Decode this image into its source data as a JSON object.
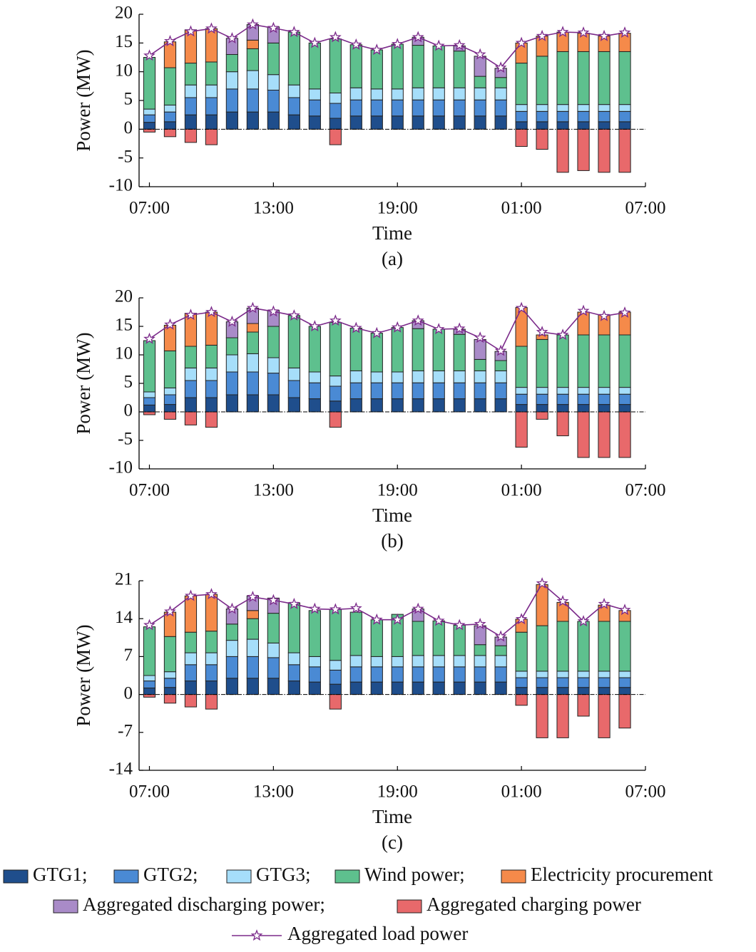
{
  "chart_data": [
    {
      "type": "bar",
      "stacked": true,
      "caption": "(a)",
      "xlabel": "Time",
      "ylabel": "Power (MW)",
      "x": [
        0,
        1,
        2,
        3,
        4,
        5,
        6,
        7,
        8,
        9,
        10,
        11,
        12,
        13,
        14,
        15,
        16,
        17,
        18,
        19,
        20,
        21,
        22,
        23
      ],
      "xlim": [
        -0.5,
        24
      ],
      "xticks": [
        {
          "value": 0,
          "label": "07:00"
        },
        {
          "value": 6,
          "label": "13:00"
        },
        {
          "value": 12,
          "label": "19:00"
        },
        {
          "value": 18,
          "label": "01:00"
        },
        {
          "value": 24,
          "label": "07:00"
        }
      ],
      "ylim": [
        -10,
        20
      ],
      "yticks": [
        -10,
        -5,
        0,
        5,
        10,
        15,
        20
      ],
      "series": [
        {
          "name": "GTG1;",
          "color": "#1f4e8c",
          "values": [
            1.2,
            1.3,
            2.5,
            2.5,
            3.0,
            3.0,
            3.0,
            2.5,
            2.3,
            1.9,
            2.3,
            2.3,
            2.3,
            2.3,
            2.3,
            2.3,
            2.3,
            2.3,
            1.3,
            1.3,
            1.3,
            1.3,
            1.3,
            1.3
          ]
        },
        {
          "name": "GTG2;",
          "color": "#4a8ad4",
          "values": [
            1.3,
            1.7,
            3.0,
            3.0,
            4.0,
            4.0,
            3.8,
            3.0,
            2.8,
            2.6,
            2.8,
            2.8,
            2.8,
            2.8,
            2.8,
            2.8,
            2.8,
            2.8,
            1.8,
            1.8,
            1.8,
            1.8,
            1.8,
            1.8
          ]
        },
        {
          "name": "GTG3;",
          "color": "#a6defa",
          "values": [
            1.0,
            1.2,
            2.2,
            2.2,
            3.0,
            3.2,
            2.7,
            2.2,
            1.9,
            1.8,
            2.1,
            1.9,
            1.9,
            2.1,
            2.1,
            2.1,
            2.1,
            2.1,
            1.2,
            1.2,
            1.2,
            1.2,
            1.2,
            1.2
          ]
        },
        {
          "name": "Wind power;",
          "color": "#5ec08e",
          "values": [
            9.0,
            6.5,
            3.8,
            4.0,
            3.0,
            3.8,
            5.5,
            9.2,
            8.0,
            9.4,
            7.5,
            6.8,
            7.8,
            7.4,
            7.3,
            6.4,
            2.0,
            1.8,
            7.2,
            8.4,
            9.2,
            9.2,
            9.2,
            9.2
          ]
        },
        {
          "name": "Electricity procurement",
          "color": "#f58a4a",
          "values": [
            0,
            4.5,
            5.8,
            5.8,
            0,
            1.5,
            0,
            0,
            0,
            0,
            0,
            0,
            0,
            0,
            0,
            0,
            0,
            0,
            3.5,
            3.5,
            3.4,
            3.2,
            2.7,
            3.2
          ]
        },
        {
          "name": "Aggregated discharging power;",
          "color": "#a98bc8",
          "values": [
            0,
            0,
            0,
            0,
            2.8,
            2.7,
            2.8,
            0,
            0,
            0,
            0,
            0,
            0,
            1.4,
            0,
            0.9,
            3.5,
            1.6,
            0,
            0,
            0,
            0,
            0,
            0
          ]
        },
        {
          "name": "Aggregated charging power",
          "color": "#e8696b",
          "values": [
            -0.5,
            -1.3,
            -2.3,
            -2.7,
            0,
            0,
            0,
            0,
            0,
            -2.7,
            0,
            0,
            0,
            0,
            0,
            0,
            0,
            0,
            -3.0,
            -3.5,
            -7.5,
            -7.2,
            -7.5,
            -7.5
          ]
        }
      ],
      "line": {
        "name": "Aggregated load power",
        "color": "#7b2a8a",
        "values": [
          12.8,
          15.3,
          17.0,
          17.5,
          15.8,
          18.2,
          17.6,
          16.9,
          15.0,
          16.0,
          14.7,
          13.8,
          14.8,
          16.0,
          14.5,
          14.6,
          13.0,
          10.7,
          15.0,
          16.2,
          16.9,
          16.8,
          16.2,
          16.8
        ]
      }
    },
    {
      "type": "bar",
      "stacked": true,
      "caption": "(b)",
      "xlabel": "Time",
      "ylabel": "Power (MW)",
      "x": [
        0,
        1,
        2,
        3,
        4,
        5,
        6,
        7,
        8,
        9,
        10,
        11,
        12,
        13,
        14,
        15,
        16,
        17,
        18,
        19,
        20,
        21,
        22,
        23
      ],
      "xlim": [
        -0.5,
        24
      ],
      "xticks": [
        {
          "value": 0,
          "label": "07:00"
        },
        {
          "value": 6,
          "label": "13:00"
        },
        {
          "value": 12,
          "label": "19:00"
        },
        {
          "value": 18,
          "label": "01:00"
        },
        {
          "value": 24,
          "label": "07:00"
        }
      ],
      "ylim": [
        -10,
        20
      ],
      "yticks": [
        -10,
        -5,
        0,
        5,
        10,
        15,
        20
      ],
      "series": [
        {
          "values": [
            1.2,
            1.3,
            2.5,
            2.5,
            3.0,
            3.0,
            3.0,
            2.5,
            2.3,
            1.9,
            2.3,
            2.3,
            2.3,
            2.3,
            2.3,
            2.3,
            2.3,
            2.3,
            1.3,
            1.3,
            1.3,
            1.3,
            1.3,
            1.3
          ]
        },
        {
          "values": [
            1.3,
            1.7,
            3.0,
            3.0,
            4.0,
            4.0,
            3.8,
            3.0,
            2.8,
            2.6,
            2.8,
            2.8,
            2.8,
            2.8,
            2.8,
            2.8,
            2.8,
            2.8,
            1.8,
            1.8,
            1.8,
            1.8,
            1.8,
            1.8
          ]
        },
        {
          "values": [
            1.0,
            1.2,
            2.2,
            2.2,
            3.0,
            3.2,
            2.7,
            2.2,
            1.9,
            1.8,
            2.1,
            1.9,
            1.9,
            2.1,
            2.1,
            2.1,
            2.1,
            2.1,
            1.2,
            1.2,
            1.2,
            1.2,
            1.2,
            1.2
          ]
        },
        {
          "values": [
            9.0,
            6.5,
            3.8,
            4.0,
            3.0,
            3.8,
            5.5,
            9.2,
            8.0,
            9.4,
            7.5,
            6.8,
            7.8,
            7.4,
            7.3,
            6.4,
            2.0,
            1.8,
            7.2,
            8.4,
            9.2,
            9.2,
            9.2,
            9.2
          ]
        },
        {
          "values": [
            0,
            4.5,
            5.8,
            5.8,
            0,
            1.5,
            0,
            0,
            0,
            0,
            0,
            0,
            0,
            0,
            0,
            0,
            0,
            0,
            6.8,
            0.8,
            0,
            4.0,
            3.5,
            4.0
          ]
        },
        {
          "values": [
            0,
            0,
            0,
            0,
            2.8,
            2.7,
            2.8,
            0,
            0,
            0,
            0,
            0,
            0,
            1.4,
            0,
            0.9,
            3.5,
            1.6,
            0,
            0,
            0,
            0,
            0,
            0
          ]
        },
        {
          "values": [
            -0.5,
            -1.3,
            -2.3,
            -2.7,
            0,
            0,
            0,
            0,
            0,
            -2.7,
            0,
            0,
            0,
            0,
            0,
            0,
            0,
            0,
            -6.2,
            -1.3,
            -4.2,
            -8.0,
            -8.0,
            -8.0
          ]
        }
      ],
      "line": {
        "values": [
          12.8,
          15.3,
          17.0,
          17.5,
          15.8,
          18.2,
          17.6,
          16.9,
          15.0,
          16.0,
          14.7,
          13.8,
          14.8,
          16.0,
          14.5,
          14.6,
          13.0,
          10.7,
          18.2,
          14.0,
          13.5,
          17.7,
          16.8,
          17.4
        ]
      }
    },
    {
      "type": "bar",
      "stacked": true,
      "caption": "(c)",
      "xlabel": "Time",
      "ylabel": "Power (MW)",
      "x": [
        0,
        1,
        2,
        3,
        4,
        5,
        6,
        7,
        8,
        9,
        10,
        11,
        12,
        13,
        14,
        15,
        16,
        17,
        18,
        19,
        20,
        21,
        22,
        23
      ],
      "xlim": [
        -0.5,
        24
      ],
      "xticks": [
        {
          "value": 0,
          "label": "07:00"
        },
        {
          "value": 6,
          "label": "13:00"
        },
        {
          "value": 12,
          "label": "19:00"
        },
        {
          "value": 18,
          "label": "01:00"
        },
        {
          "value": 24,
          "label": "07:00"
        }
      ],
      "ylim": [
        -14,
        21
      ],
      "yticks": [
        -14,
        -7,
        0,
        7,
        14,
        21
      ],
      "series": [
        {
          "values": [
            1.2,
            1.3,
            2.5,
            2.5,
            3.0,
            3.0,
            3.0,
            2.5,
            2.3,
            1.9,
            2.3,
            2.3,
            2.3,
            2.3,
            2.3,
            2.3,
            2.3,
            2.3,
            1.3,
            1.3,
            1.3,
            1.3,
            1.3,
            1.3
          ]
        },
        {
          "values": [
            1.3,
            1.7,
            3.0,
            3.0,
            4.0,
            4.0,
            3.8,
            3.0,
            2.8,
            2.6,
            2.8,
            2.8,
            2.8,
            2.8,
            2.8,
            2.8,
            2.8,
            2.8,
            1.8,
            1.8,
            1.8,
            1.8,
            1.8,
            1.8
          ]
        },
        {
          "values": [
            1.0,
            1.2,
            2.2,
            2.2,
            3.0,
            3.2,
            2.7,
            2.2,
            1.9,
            1.8,
            2.1,
            1.9,
            1.9,
            2.1,
            2.1,
            2.1,
            2.1,
            2.1,
            1.2,
            1.2,
            1.2,
            1.2,
            1.2,
            1.2
          ]
        },
        {
          "values": [
            9.0,
            6.5,
            3.8,
            4.0,
            3.0,
            3.8,
            5.5,
            9.2,
            8.5,
            9.4,
            8.0,
            6.8,
            7.8,
            6.3,
            6.4,
            5.6,
            2.0,
            1.8,
            7.2,
            8.4,
            9.2,
            9.2,
            9.2,
            9.2
          ]
        },
        {
          "values": [
            0,
            4.5,
            6.7,
            6.8,
            0,
            1.5,
            0,
            0,
            0,
            0,
            0,
            0,
            0,
            0,
            0,
            0,
            0,
            0,
            2.4,
            7.6,
            3.5,
            0,
            3.0,
            2.0
          ]
        },
        {
          "values": [
            0,
            0,
            0,
            0,
            2.8,
            2.7,
            2.8,
            0,
            0,
            0,
            0,
            0,
            0,
            2.3,
            0,
            0,
            3.5,
            1.6,
            0,
            0,
            0,
            0,
            0,
            0
          ]
        },
        {
          "values": [
            -0.5,
            -1.6,
            -2.3,
            -2.7,
            0,
            0,
            0,
            0,
            0,
            -2.7,
            0,
            0,
            0,
            0,
            0,
            0,
            0,
            0,
            -2.0,
            -8.0,
            -8.0,
            -4.0,
            -8.0,
            -6.2
          ]
        }
      ],
      "line": {
        "values": [
          12.8,
          15.3,
          18.2,
          18.5,
          15.8,
          18.0,
          17.4,
          16.7,
          15.8,
          15.7,
          15.9,
          13.8,
          13.8,
          15.8,
          13.6,
          12.8,
          13.0,
          10.7,
          13.9,
          20.5,
          17.2,
          13.5,
          16.7,
          15.6
        ]
      }
    }
  ]
}
